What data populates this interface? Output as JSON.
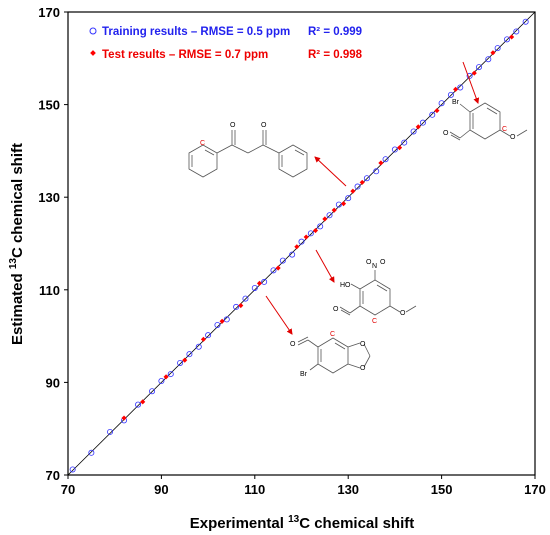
{
  "chart_data": {
    "type": "scatter",
    "xlabel_prefix": "Experimental ",
    "xlabel_sup": "13",
    "xlabel_suffix": "C chemical shift",
    "ylabel_prefix": "Estimated ",
    "ylabel_sup": "13",
    "ylabel_suffix": "C chemical shift",
    "xlim": [
      70,
      170
    ],
    "ylim": [
      70,
      170
    ],
    "xticks": [
      "70",
      "90",
      "110",
      "130",
      "150",
      "170"
    ],
    "yticks": [
      "70",
      "90",
      "110",
      "130",
      "150",
      "170"
    ],
    "grid": false,
    "legend_position": "top-left",
    "series": [
      {
        "name": "Training results – RMSE = 0.5 ppm",
        "r2": "R² = 0.999",
        "color": "#3333ff",
        "marker": "open-circle",
        "x": [
          71,
          75,
          79,
          82,
          85,
          88,
          90,
          92,
          94,
          96,
          98,
          100,
          102,
          104,
          106,
          108,
          110,
          112,
          114,
          116,
          118,
          120,
          122,
          124,
          126,
          128,
          130,
          132,
          134,
          136,
          138,
          140,
          142,
          144,
          146,
          148,
          150,
          152,
          154,
          156,
          158,
          160,
          162,
          164,
          166,
          168
        ],
        "y": [
          71.2,
          74.8,
          79.3,
          81.8,
          85.2,
          88.1,
          90.3,
          91.8,
          94.2,
          96.1,
          97.7,
          100.2,
          102.4,
          103.6,
          106.3,
          108.1,
          110.4,
          111.7,
          114.2,
          116.3,
          117.6,
          120.4,
          122.2,
          123.7,
          126.1,
          128.4,
          129.8,
          132.3,
          134.1,
          135.6,
          138.2,
          140.3,
          141.8,
          144.2,
          146.1,
          147.8,
          150.3,
          152.1,
          153.7,
          156.2,
          158.1,
          159.8,
          162.2,
          164.1,
          165.8,
          167.9
        ]
      },
      {
        "name": "Test results – RMSE = 0.7 ppm",
        "r2": "R² = 0.998",
        "color": "#ff0000",
        "marker": "filled-diamond",
        "x": [
          82,
          86,
          91,
          95,
          99,
          103,
          107,
          111,
          115,
          119,
          121,
          123,
          125,
          127,
          129,
          131,
          133,
          137,
          141,
          145,
          149,
          153,
          157,
          161,
          165
        ],
        "y": [
          82.3,
          85.8,
          91.2,
          94.8,
          99.3,
          103.2,
          106.6,
          111.4,
          114.7,
          119.3,
          121.4,
          122.8,
          125.3,
          127.2,
          128.6,
          131.3,
          133.2,
          137.4,
          140.7,
          145.2,
          148.7,
          153.3,
          156.8,
          161.2,
          164.6
        ]
      }
    ],
    "annotation_atoms": {
      "br": "Br",
      "o": "O",
      "c": "C",
      "n": "N",
      "ho": "HO"
    }
  }
}
